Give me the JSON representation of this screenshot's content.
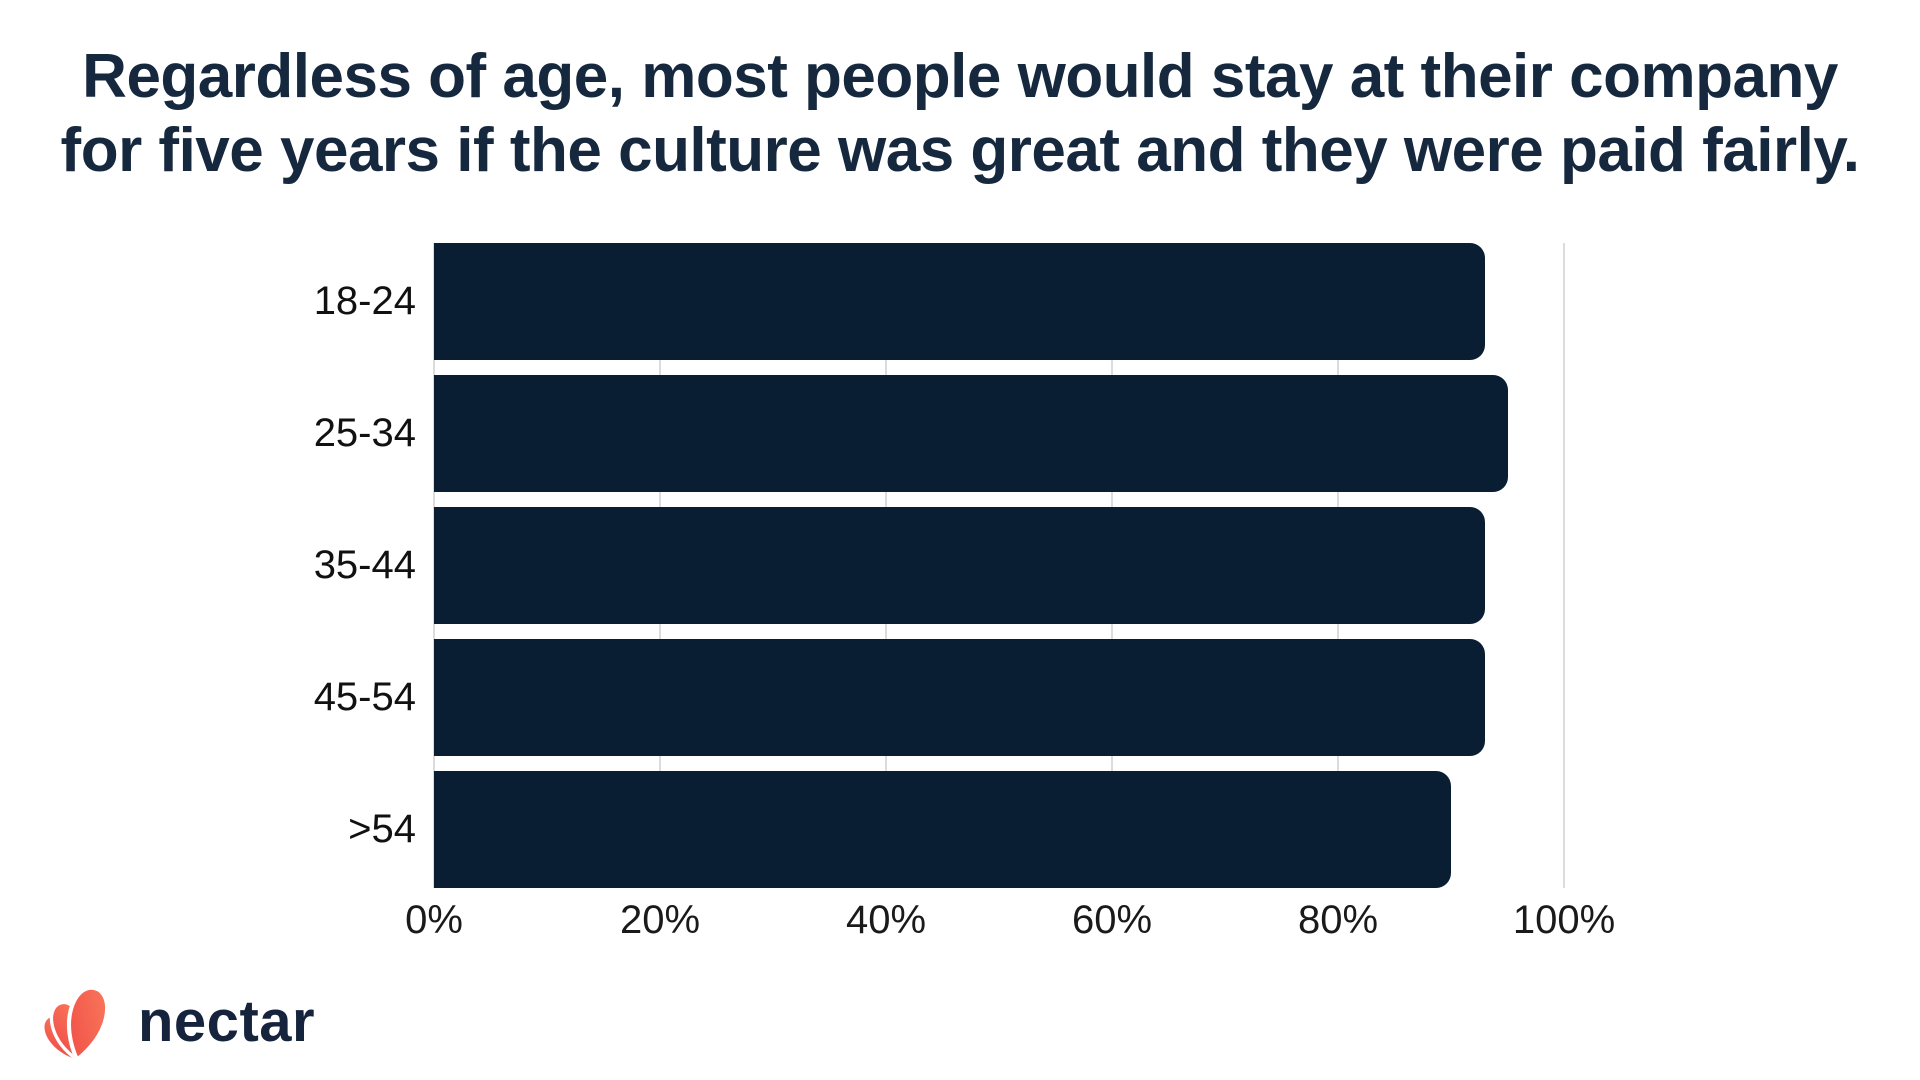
{
  "title": {
    "line1": "Regardless of age, most people would stay at their company",
    "line2": "for five years if the culture was great and they were paid fairly."
  },
  "chart_data": {
    "type": "bar",
    "orientation": "horizontal",
    "title": "Regardless of age, most people would stay at their company for five years if the culture was great and they were paid fairly.",
    "categories": [
      "18-24",
      "25-34",
      "35-44",
      "45-54",
      ">54"
    ],
    "values": [
      93,
      95,
      93,
      93,
      90
    ],
    "value_unit": "%",
    "xlabel": "",
    "ylabel": "",
    "xlim": [
      0,
      100
    ],
    "x_ticks": [
      "0%",
      "20%",
      "40%",
      "60%",
      "80%",
      "100%"
    ],
    "grid": "vertical-only",
    "legend": "none",
    "bar_color": "#0A1E33",
    "gridline_color": "#DCDCDC",
    "category_label_color": "#111111",
    "tick_label_color": "#1A1A1A",
    "title_color": "#16283E"
  },
  "footer": {
    "logo_text": "nectar",
    "logo_icon": "nectar-flower-icon",
    "logo_text_color": "#15243C",
    "logo_accent_color": "#F4564E"
  }
}
